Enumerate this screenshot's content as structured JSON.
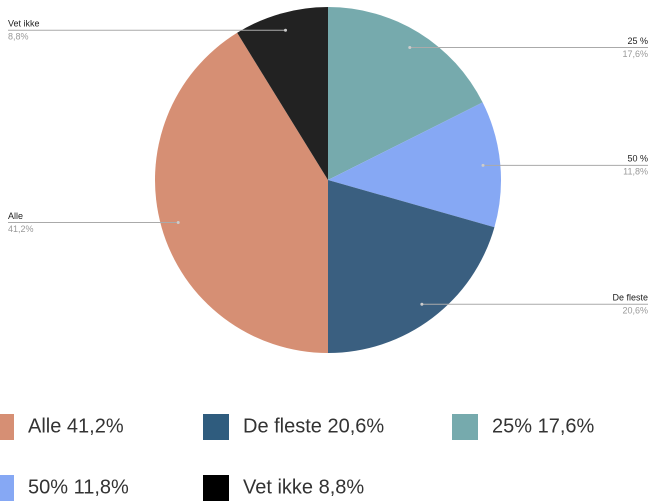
{
  "chart_data": {
    "type": "pie",
    "categories": [
      "25 %",
      "50 %",
      "De fleste",
      "Alle",
      "Vet ikke"
    ],
    "values": [
      17.6,
      11.8,
      20.6,
      41.2,
      8.8
    ],
    "value_labels": [
      "17,6%",
      "11,8%",
      "20,6%",
      "41,2%",
      "8,8%"
    ],
    "colors": [
      "#76aaad",
      "#86a8f4",
      "#3a5f80",
      "#d68f74",
      "#222222"
    ],
    "legend": {
      "labels": [
        "Alle 41,2%",
        "De fleste 20,6%",
        "25% 17,6%",
        "50% 11,8%",
        "Vet ikke 8,8%"
      ],
      "colors": [
        "#d68f74",
        "#2f5c7e",
        "#76aaad",
        "#86a8f4",
        "#000000"
      ]
    }
  }
}
